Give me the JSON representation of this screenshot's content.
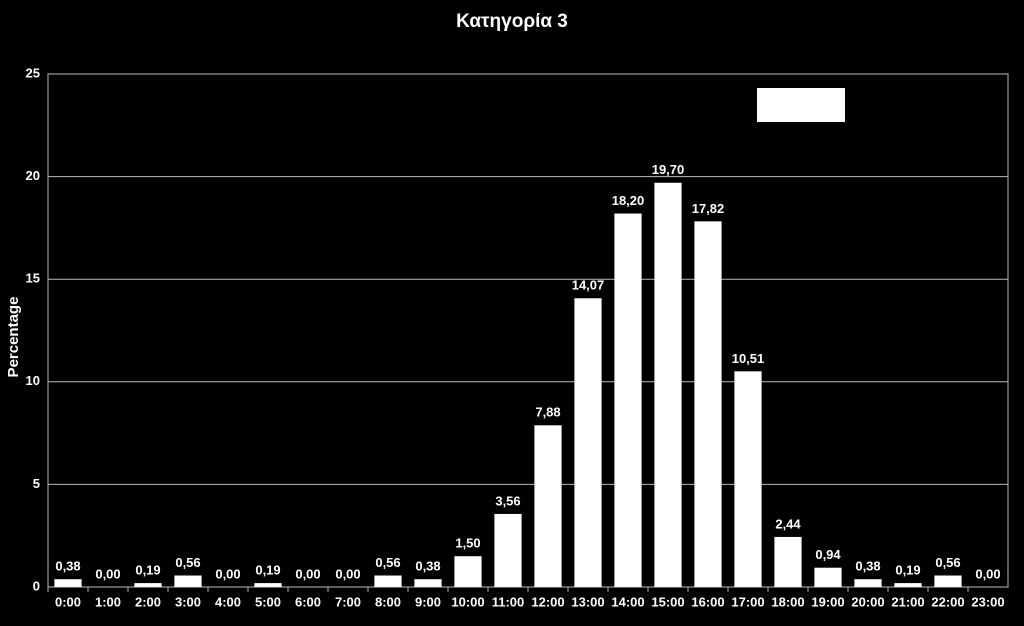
{
  "chart_data": {
    "type": "bar",
    "title": "Κατηγορία 3",
    "y_label": "Percentage",
    "categories": [
      "0:00",
      "1:00",
      "2:00",
      "3:00",
      "4:00",
      "5:00",
      "6:00",
      "7:00",
      "8:00",
      "9:00",
      "10:00",
      "11:00",
      "12:00",
      "13:00",
      "14:00",
      "15:00",
      "16:00",
      "17:00",
      "18:00",
      "19:00",
      "20:00",
      "21:00",
      "22:00",
      "23:00"
    ],
    "values": [
      0.38,
      0,
      0.19,
      0.56,
      0,
      0.19,
      0,
      0,
      0.56,
      0.38,
      1.5,
      3.56,
      7.88,
      14.07,
      18.2,
      19.7,
      17.82,
      10.51,
      2.44,
      0.94,
      0.38,
      0.19,
      0.56,
      0
    ],
    "value_labels": [
      "0,38",
      "0,00",
      "0,19",
      "0,56",
      "0,00",
      "0,19",
      "0,00",
      "0,00",
      "0,56",
      "0,38",
      "1,50",
      "3,56",
      "7,88",
      "14,07",
      "18,20",
      "19,70",
      "17,82",
      "10,51",
      "2,44",
      "0,94",
      "0,38",
      "0,19",
      "0,56",
      "0,00"
    ],
    "color": "#ffffff",
    "ylim": [
      0,
      25
    ],
    "yticks": [
      0,
      5,
      10,
      15,
      20,
      25
    ],
    "grid": true
  }
}
